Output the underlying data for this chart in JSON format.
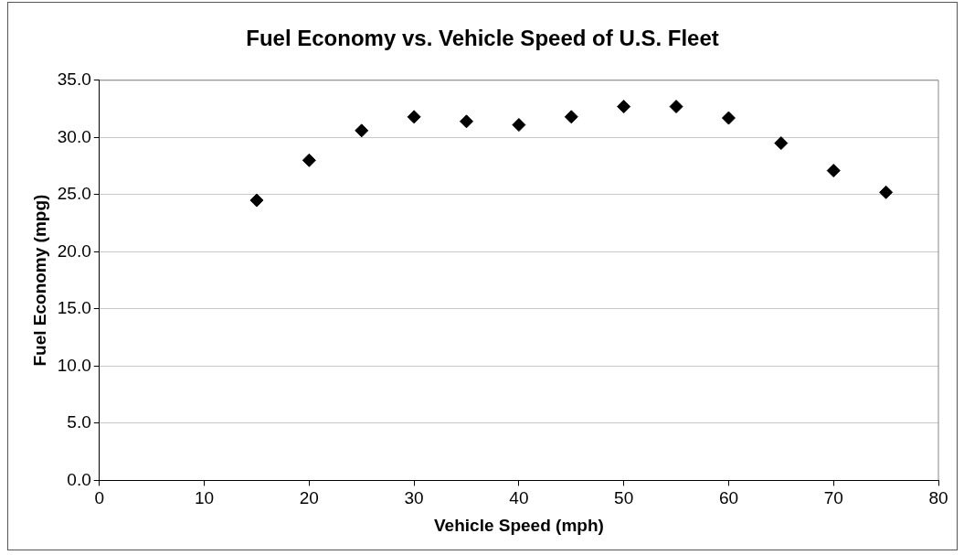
{
  "chart_data": {
    "type": "scatter",
    "title": "Fuel Economy vs. Vehicle Speed of U.S. Fleet",
    "xlabel": "Vehicle Speed (mph)",
    "ylabel": "Fuel Economy (mpg)",
    "x": [
      15,
      20,
      25,
      30,
      35,
      40,
      45,
      50,
      55,
      60,
      65,
      70,
      75
    ],
    "values": [
      24.5,
      28.0,
      30.6,
      31.8,
      31.4,
      31.1,
      31.8,
      32.7,
      32.7,
      31.7,
      29.5,
      27.1,
      25.2
    ],
    "color": "#000000",
    "marker": "diamond",
    "xlim": [
      0,
      80
    ],
    "xticks": [
      0,
      10,
      20,
      30,
      40,
      50,
      60,
      70,
      80
    ],
    "ylim": [
      0,
      35
    ],
    "yticks": [
      {
        "value": 0,
        "label": "0.0"
      },
      {
        "value": 5,
        "label": "5.0"
      },
      {
        "value": 10,
        "label": "10.0"
      },
      {
        "value": 15,
        "label": "15.0"
      },
      {
        "value": 20,
        "label": "20.0"
      },
      {
        "value": 25,
        "label": "25.0"
      },
      {
        "value": 30,
        "label": "30.0"
      },
      {
        "value": 35,
        "label": "35.0"
      }
    ],
    "grid": "y"
  }
}
